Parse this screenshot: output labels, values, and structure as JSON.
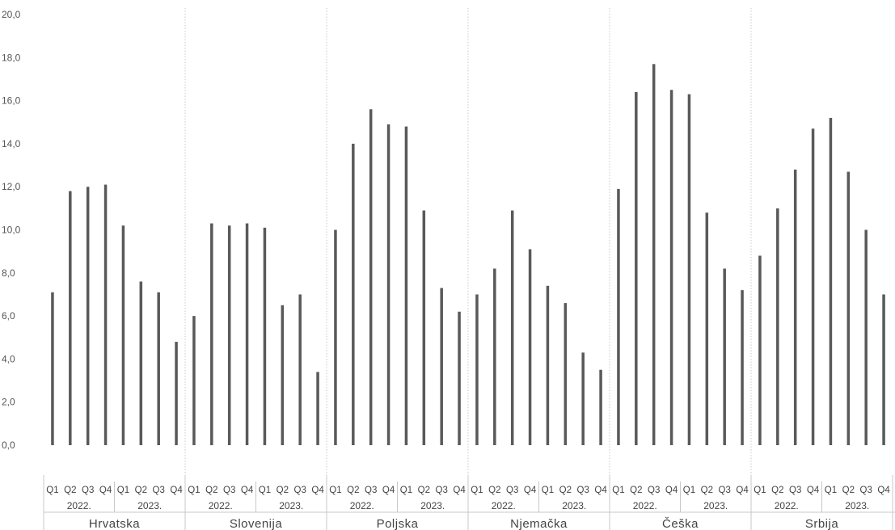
{
  "chart_data": {
    "type": "bar",
    "ylim": [
      0,
      20
    ],
    "yticks": [
      "0,0",
      "2,0",
      "4,0",
      "6,0",
      "8,0",
      "10,0",
      "12,0",
      "14,0",
      "16,0",
      "18,0",
      "20,0"
    ],
    "quarters": [
      "Q1",
      "Q2",
      "Q3",
      "Q4"
    ],
    "years": [
      "2022.",
      "2023."
    ],
    "grid": false,
    "bar_color": "#595959",
    "countries": [
      {
        "name": "Hrvatska",
        "values": [
          7.1,
          11.8,
          12.0,
          12.1,
          10.2,
          7.6,
          7.1,
          4.8
        ]
      },
      {
        "name": "Slovenija",
        "values": [
          6.0,
          10.3,
          10.2,
          10.3,
          10.1,
          6.5,
          7.0,
          3.4
        ]
      },
      {
        "name": "Poljska",
        "values": [
          10.0,
          14.0,
          15.6,
          14.9,
          14.8,
          10.9,
          7.3,
          6.2
        ]
      },
      {
        "name": "Njemačka",
        "values": [
          7.0,
          8.2,
          10.9,
          9.1,
          7.4,
          6.6,
          4.3,
          3.5
        ]
      },
      {
        "name": "Češka",
        "values": [
          11.9,
          16.4,
          17.7,
          16.5,
          16.3,
          10.8,
          8.2,
          7.2
        ]
      },
      {
        "name": "Srbija",
        "values": [
          8.8,
          11.0,
          12.8,
          14.7,
          15.2,
          12.7,
          10.0,
          7.0
        ]
      }
    ]
  }
}
